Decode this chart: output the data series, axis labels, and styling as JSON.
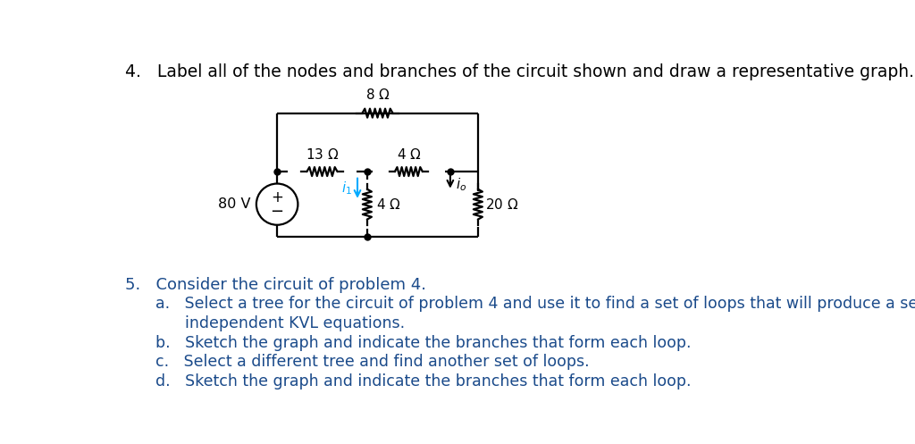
{
  "bg_color": "#ffffff",
  "text_color": "#000000",
  "blue_text": "#1a4a8a",
  "circuit_color": "#000000",
  "current_color": "#00aaff",
  "title_q4": "4.   Label all of the nodes and branches of the circuit shown and draw a representative graph.",
  "title_q5": "5.   Consider the circuit of problem 4.",
  "sub_a": "a.   Select a tree for the circuit of problem 4 and use it to find a set of loops that will produce a set of",
  "sub_a2": "      independent KVL equations.",
  "sub_b": "b.   Sketch the graph and indicate the branches that form each loop.",
  "sub_c": "c.   Select a different tree and find another set of loops.",
  "sub_d": "d.   Sketch the graph and indicate the branches that form each loop.",
  "font_size_title": 13.5,
  "font_size_body": 12.5,
  "xL": 2.35,
  "xM": 3.65,
  "xR": 4.85,
  "xRR": 5.25,
  "yTop": 4.1,
  "yMid": 3.25,
  "yBot": 2.3
}
